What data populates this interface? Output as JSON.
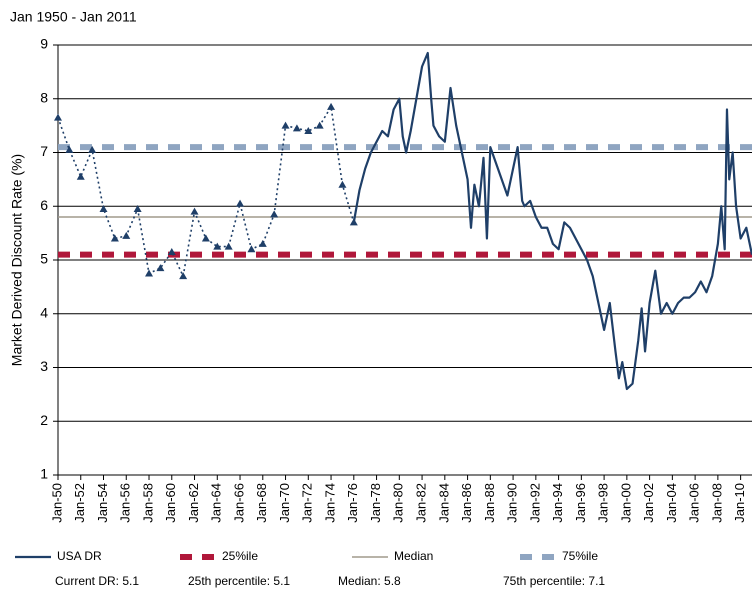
{
  "chart_data": {
    "type": "line",
    "title": "Jan 1950 - Jan 2011",
    "y_label": "Market Derived Discount Rate (%)",
    "xlim": [
      1950,
      2011
    ],
    "ylim": [
      1,
      9
    ],
    "yticks": [
      1,
      2,
      3,
      4,
      5,
      6,
      7,
      8,
      9
    ],
    "grid": true,
    "xticks": [
      {
        "value": 1950,
        "label": "Jan-50"
      },
      {
        "value": 1952,
        "label": "Jan-52"
      },
      {
        "value": 1954,
        "label": "Jan-54"
      },
      {
        "value": 1956,
        "label": "Jan-56"
      },
      {
        "value": 1958,
        "label": "Jan-58"
      },
      {
        "value": 1960,
        "label": "Jan-60"
      },
      {
        "value": 1962,
        "label": "Jan-62"
      },
      {
        "value": 1964,
        "label": "Jan-64"
      },
      {
        "value": 1966,
        "label": "Jan-66"
      },
      {
        "value": 1968,
        "label": "Jan-68"
      },
      {
        "value": 1970,
        "label": "Jan-70"
      },
      {
        "value": 1972,
        "label": "Jan-72"
      },
      {
        "value": 1974,
        "label": "Jan-74"
      },
      {
        "value": 1976,
        "label": "Jan-76"
      },
      {
        "value": 1978,
        "label": "Jan-78"
      },
      {
        "value": 1980,
        "label": "Jan-80"
      },
      {
        "value": 1982,
        "label": "Jan-82"
      },
      {
        "value": 1984,
        "label": "Jan-84"
      },
      {
        "value": 1986,
        "label": "Jan-86"
      },
      {
        "value": 1988,
        "label": "Jan-88"
      },
      {
        "value": 1990,
        "label": "Jan-90"
      },
      {
        "value": 1992,
        "label": "Jan-92"
      },
      {
        "value": 1994,
        "label": "Jan-94"
      },
      {
        "value": 1996,
        "label": "Jan-96"
      },
      {
        "value": 1998,
        "label": "Jan-98"
      },
      {
        "value": 2000,
        "label": "Jan-00"
      },
      {
        "value": 2002,
        "label": "Jan-02"
      },
      {
        "value": 2004,
        "label": "Jan-04"
      },
      {
        "value": 2006,
        "label": "Jan-06"
      },
      {
        "value": 2008,
        "label": "Jan-08"
      },
      {
        "value": 2010,
        "label": "Jan-10"
      }
    ],
    "series": [
      {
        "name": "USA DR",
        "color": "#1f3f68",
        "style": "solid",
        "x": [
          1976,
          1976.5,
          1977,
          1977.5,
          1978,
          1978.5,
          1979,
          1979.5,
          1980,
          1980.3,
          1980.6,
          1981,
          1981.5,
          1982,
          1982.5,
          1982.8,
          1983,
          1983.5,
          1984,
          1984.5,
          1985,
          1985.5,
          1986,
          1986.3,
          1986.6,
          1987,
          1987.4,
          1987.7,
          1988,
          1988.5,
          1989,
          1989.5,
          1990,
          1990.4,
          1990.8,
          1991,
          1991.5,
          1992,
          1992.5,
          1993,
          1993.5,
          1994,
          1994.5,
          1995,
          1995.5,
          1996,
          1996.5,
          1997,
          1997.5,
          1998,
          1998.5,
          1999,
          1999.3,
          1999.6,
          2000,
          2000.5,
          2001,
          2001.3,
          2001.6,
          2002,
          2002.5,
          2003,
          2003.5,
          2004,
          2004.5,
          2005,
          2005.5,
          2006,
          2006.5,
          2007,
          2007.5,
          2008,
          2008.3,
          2008.6,
          2008.8,
          2009,
          2009.3,
          2009.6,
          2010,
          2010.5,
          2011
        ],
        "values": [
          5.7,
          6.3,
          6.7,
          7.0,
          7.2,
          7.4,
          7.3,
          7.8,
          8.0,
          7.3,
          7.0,
          7.4,
          8.0,
          8.6,
          8.85,
          8.0,
          7.5,
          7.3,
          7.2,
          8.2,
          7.5,
          7.0,
          6.5,
          5.6,
          6.4,
          6.0,
          6.9,
          5.4,
          7.1,
          6.8,
          6.5,
          6.2,
          6.7,
          7.1,
          6.1,
          6.0,
          6.1,
          5.8,
          5.6,
          5.6,
          5.3,
          5.2,
          5.7,
          5.6,
          5.4,
          5.2,
          5.0,
          4.7,
          4.2,
          3.7,
          4.2,
          3.3,
          2.8,
          3.1,
          2.6,
          2.7,
          3.5,
          4.1,
          3.3,
          4.2,
          4.8,
          4.0,
          4.2,
          4.0,
          4.2,
          4.3,
          4.3,
          4.4,
          4.6,
          4.4,
          4.7,
          5.3,
          6.0,
          5.2,
          7.8,
          6.5,
          7.0,
          6.0,
          5.4,
          5.6,
          5.1
        ]
      },
      {
        "color": "#1f3f68",
        "style": "dotted",
        "marker": "triangle",
        "x": [
          1950,
          1951,
          1952,
          1953,
          1954,
          1955,
          1956,
          1957,
          1958,
          1959,
          1960,
          1961,
          1962,
          1963,
          1964,
          1965,
          1966,
          1967,
          1968,
          1969,
          1970,
          1971,
          1972,
          1973,
          1974,
          1975,
          1976
        ],
        "values": [
          7.65,
          7.05,
          6.55,
          7.05,
          5.95,
          5.4,
          5.45,
          5.95,
          4.75,
          4.85,
          5.15,
          4.7,
          5.9,
          5.4,
          5.25,
          5.25,
          6.05,
          5.2,
          5.3,
          5.85,
          7.5,
          7.45,
          7.4,
          7.5,
          7.85,
          6.4,
          5.7
        ]
      }
    ],
    "reference_lines": [
      {
        "name": "25%ile",
        "value": 5.1,
        "color": "#b0173a",
        "style": "dashed"
      },
      {
        "name": "Median",
        "value": 5.8,
        "color": "#a09a8c",
        "style": "solid"
      },
      {
        "name": "75%ile",
        "value": 7.1,
        "color": "#8fa5c1",
        "style": "dashed"
      }
    ],
    "notes": [
      "Current DR: 5.1",
      "25th percentile: 5.1",
      "Median: 5.8",
      "75th percentile: 7.1"
    ]
  }
}
